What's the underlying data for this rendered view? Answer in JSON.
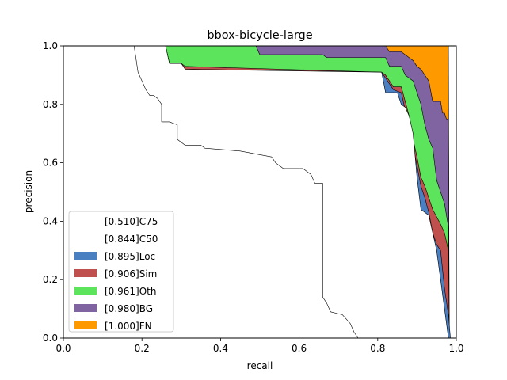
{
  "chart_data": {
    "type": "area",
    "title": "bbox-bicycle-large",
    "xlabel": "recall",
    "ylabel": "precision",
    "xlim": [
      0,
      1
    ],
    "ylim": [
      0,
      1
    ],
    "xticks": [
      "0.0",
      "0.2",
      "0.4",
      "0.6",
      "0.8",
      "1.0"
    ],
    "yticks": [
      "0.0",
      "0.2",
      "0.4",
      "0.6",
      "0.8",
      "1.0"
    ],
    "grid": false,
    "legend_position": "bottom-left",
    "series": [
      {
        "name": "[1.000]FN",
        "color": "#ff9900",
        "points": [
          [
            0,
            1
          ],
          [
            0.98,
            1
          ],
          [
            0.982,
            0
          ],
          [
            1,
            0
          ]
        ]
      },
      {
        "name": "[0.980]BG",
        "color": "#8064a2",
        "points": [
          [
            0,
            1
          ],
          [
            0.82,
            1
          ],
          [
            0.83,
            0.98
          ],
          [
            0.86,
            0.98
          ],
          [
            0.87,
            0.97
          ],
          [
            0.89,
            0.95
          ],
          [
            0.9,
            0.93
          ],
          [
            0.91,
            0.92
          ],
          [
            0.93,
            0.88
          ],
          [
            0.94,
            0.81
          ],
          [
            0.96,
            0.81
          ],
          [
            0.965,
            0.77
          ],
          [
            0.97,
            0.77
          ],
          [
            0.975,
            0.75
          ],
          [
            0.98,
            0.75
          ],
          [
            0.982,
            0
          ]
        ]
      },
      {
        "name": "[0.961]Oth",
        "color": "#5de45d",
        "points": [
          [
            0,
            1
          ],
          [
            0.49,
            1
          ],
          [
            0.5,
            0.97
          ],
          [
            0.66,
            0.97
          ],
          [
            0.67,
            0.96
          ],
          [
            0.82,
            0.96
          ],
          [
            0.83,
            0.93
          ],
          [
            0.86,
            0.93
          ],
          [
            0.87,
            0.9
          ],
          [
            0.89,
            0.88
          ],
          [
            0.9,
            0.84
          ],
          [
            0.91,
            0.8
          ],
          [
            0.92,
            0.73
          ],
          [
            0.93,
            0.68
          ],
          [
            0.94,
            0.65
          ],
          [
            0.95,
            0.54
          ],
          [
            0.96,
            0.5
          ],
          [
            0.97,
            0.46
          ],
          [
            0.98,
            0.38
          ],
          [
            0.982,
            0
          ]
        ]
      },
      {
        "name": "[0.906]Sim",
        "color": "#c0504d",
        "points": [
          [
            0,
            1
          ],
          [
            0.26,
            1
          ],
          [
            0.27,
            0.94
          ],
          [
            0.3,
            0.94
          ],
          [
            0.31,
            0.93
          ],
          [
            0.81,
            0.91
          ],
          [
            0.82,
            0.9
          ],
          [
            0.84,
            0.86
          ],
          [
            0.86,
            0.86
          ],
          [
            0.87,
            0.81
          ],
          [
            0.88,
            0.76
          ],
          [
            0.89,
            0.68
          ],
          [
            0.9,
            0.62
          ],
          [
            0.91,
            0.55
          ],
          [
            0.92,
            0.52
          ],
          [
            0.93,
            0.48
          ],
          [
            0.94,
            0.44
          ],
          [
            0.96,
            0.39
          ],
          [
            0.97,
            0.36
          ],
          [
            0.98,
            0.3
          ],
          [
            0.982,
            0
          ]
        ]
      },
      {
        "name": "[0.895]Loc",
        "color": "#4a7fc1",
        "points": [
          [
            0,
            1
          ],
          [
            0.26,
            1
          ],
          [
            0.27,
            0.94
          ],
          [
            0.3,
            0.94
          ],
          [
            0.31,
            0.92
          ],
          [
            0.81,
            0.91
          ],
          [
            0.82,
            0.89
          ],
          [
            0.84,
            0.85
          ],
          [
            0.86,
            0.84
          ],
          [
            0.87,
            0.78
          ],
          [
            0.88,
            0.73
          ],
          [
            0.89,
            0.66
          ],
          [
            0.9,
            0.59
          ],
          [
            0.91,
            0.52
          ],
          [
            0.92,
            0.48
          ],
          [
            0.93,
            0.43
          ],
          [
            0.94,
            0.36
          ],
          [
            0.95,
            0.32
          ],
          [
            0.96,
            0.3
          ],
          [
            0.97,
            0.17
          ],
          [
            0.98,
            0.08
          ],
          [
            0.985,
            0
          ]
        ]
      },
      {
        "name": "[0.844]C50",
        "color": "#ffffff",
        "points": [
          [
            0,
            1
          ],
          [
            0.26,
            1
          ],
          [
            0.27,
            0.94
          ],
          [
            0.3,
            0.94
          ],
          [
            0.31,
            0.92
          ],
          [
            0.81,
            0.91
          ],
          [
            0.82,
            0.84
          ],
          [
            0.85,
            0.84
          ],
          [
            0.86,
            0.8
          ],
          [
            0.87,
            0.79
          ],
          [
            0.88,
            0.76
          ],
          [
            0.89,
            0.7
          ],
          [
            0.9,
            0.55
          ],
          [
            0.91,
            0.44
          ],
          [
            0.93,
            0.42
          ],
          [
            0.94,
            0.36
          ],
          [
            0.95,
            0.3
          ],
          [
            0.96,
            0.2
          ],
          [
            0.97,
            0.1
          ],
          [
            0.98,
            0
          ]
        ]
      },
      {
        "name": "[0.510]C75",
        "color": "#ffffff",
        "points": [
          [
            0,
            1
          ],
          [
            0.18,
            1
          ],
          [
            0.19,
            0.91
          ],
          [
            0.2,
            0.88
          ],
          [
            0.21,
            0.85
          ],
          [
            0.22,
            0.83
          ],
          [
            0.23,
            0.83
          ],
          [
            0.24,
            0.82
          ],
          [
            0.25,
            0.8
          ],
          [
            0.25,
            0.74
          ],
          [
            0.27,
            0.74
          ],
          [
            0.29,
            0.73
          ],
          [
            0.29,
            0.68
          ],
          [
            0.3,
            0.67
          ],
          [
            0.31,
            0.66
          ],
          [
            0.35,
            0.66
          ],
          [
            0.36,
            0.65
          ],
          [
            0.45,
            0.64
          ],
          [
            0.53,
            0.62
          ],
          [
            0.54,
            0.6
          ],
          [
            0.56,
            0.58
          ],
          [
            0.61,
            0.58
          ],
          [
            0.63,
            0.56
          ],
          [
            0.64,
            0.53
          ],
          [
            0.66,
            0.53
          ],
          [
            0.66,
            0.14
          ],
          [
            0.67,
            0.12
          ],
          [
            0.68,
            0.09
          ],
          [
            0.71,
            0.08
          ],
          [
            0.73,
            0.05
          ],
          [
            0.74,
            0.02
          ],
          [
            0.75,
            0
          ]
        ]
      }
    ]
  }
}
